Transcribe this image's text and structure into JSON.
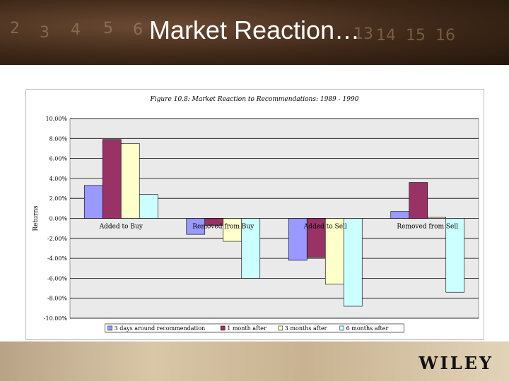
{
  "slide": {
    "title": "Market Reaction…",
    "logo": "WILEY",
    "banner_digits": [
      "2",
      "3",
      "4",
      "5",
      "6",
      "13",
      "14",
      "15",
      "16"
    ]
  },
  "chart_data": {
    "type": "bar",
    "title": "Figure 10.8: Market Reaction to Recommendations: 1989 - 1990",
    "ylabel": "Returns",
    "xlabel": "",
    "ylim": [
      -0.1,
      0.1
    ],
    "yticks": [
      0.1,
      0.08,
      0.06,
      0.04,
      0.02,
      0.0,
      -0.02,
      -0.04,
      -0.06,
      -0.08,
      -0.1
    ],
    "ytick_labels": [
      "10.00%",
      "8.00%",
      "6.00%",
      "4.00%",
      "2.00%",
      "0.00%",
      "-2.00%",
      "-4.00%",
      "-6.00%",
      "-8.00%",
      "-10.00%"
    ],
    "categories": [
      "Added to Buy",
      "Removed from Buy",
      "Added to Sell",
      "Removed from Sell"
    ],
    "series": [
      {
        "name": "3 days around recommendation",
        "color": "#9999ff",
        "values": [
          0.033,
          -0.016,
          -0.042,
          0.007
        ]
      },
      {
        "name": "1 month after",
        "color": "#993366",
        "values": [
          0.079,
          -0.007,
          -0.039,
          0.036
        ]
      },
      {
        "name": "3 months after",
        "color": "#ffffcc",
        "values": [
          0.075,
          -0.023,
          -0.066,
          0.001
        ]
      },
      {
        "name": "6 months after",
        "color": "#ccffff",
        "values": [
          0.024,
          -0.06,
          -0.088,
          -0.074
        ]
      }
    ],
    "grid": true,
    "legend": "bottom",
    "colors": {
      "plot_bg": "#eaeaea",
      "gridline": "#000000"
    }
  }
}
